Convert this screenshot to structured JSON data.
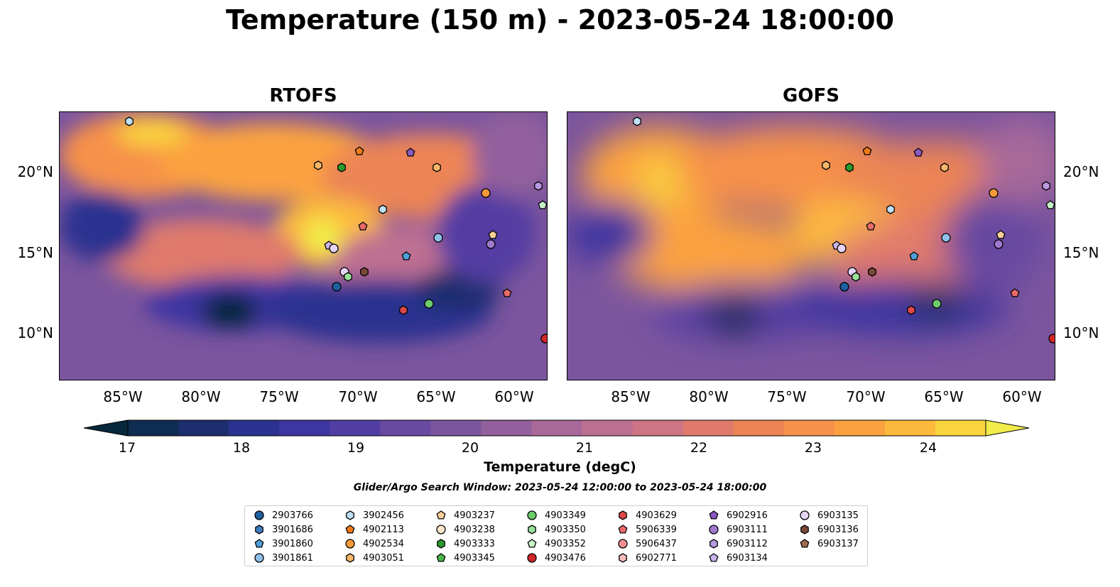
{
  "title": "Temperature (150 m) - 2023-05-24 18:00:00",
  "panels": [
    {
      "title": "RTOFS",
      "variant": "rtofs"
    },
    {
      "title": "GOFS",
      "variant": "gofs"
    }
  ],
  "axes": {
    "lat_ticks": [
      "20°N",
      "15°N",
      "10°N"
    ],
    "lon_ticks": [
      "85°W",
      "80°W",
      "75°W",
      "70°W",
      "65°W",
      "60°W"
    ]
  },
  "colorbar": {
    "label": "Temperature (degC)",
    "ticks": [
      "17",
      "18",
      "19",
      "20",
      "21",
      "22",
      "23",
      "24"
    ],
    "colors": [
      "#06283a",
      "#0f2d52",
      "#1c2e6e",
      "#2a3190",
      "#3d36a0",
      "#523ea3",
      "#684aa0",
      "#7c559e",
      "#92609c",
      "#a8699a",
      "#bd6f91",
      "#cf7484",
      "#df7a6c",
      "#ec8455",
      "#f7914a",
      "#fba240",
      "#fdb93c",
      "#f9d43e",
      "#f1ec4a"
    ]
  },
  "search_window": "Glider/Argo Search Window: 2023-05-24 12:00:00 to 2023-05-24 18:00:00",
  "legend": [
    {
      "id": "2903766",
      "shape": "circle",
      "color": "#1f5fa0"
    },
    {
      "id": "3901686",
      "shape": "hexagon",
      "color": "#3f7fc0"
    },
    {
      "id": "3901860",
      "shape": "pentagon",
      "color": "#4f9fd8"
    },
    {
      "id": "3901861",
      "shape": "circle",
      "color": "#8fc0ea"
    },
    {
      "id": "3902456",
      "shape": "hexagon",
      "color": "#bfe0f8"
    },
    {
      "id": "4902113",
      "shape": "pentagon",
      "color": "#f07a18"
    },
    {
      "id": "4902534",
      "shape": "circle",
      "color": "#f59a3a"
    },
    {
      "id": "4903051",
      "shape": "hexagon",
      "color": "#f8b86a"
    },
    {
      "id": "4903237",
      "shape": "pentagon",
      "color": "#fbd09a"
    },
    {
      "id": "4903238",
      "shape": "circle",
      "color": "#fde6c8"
    },
    {
      "id": "4903333",
      "shape": "hexagon",
      "color": "#2a9a2a"
    },
    {
      "id": "4903345",
      "shape": "pentagon",
      "color": "#48b848"
    },
    {
      "id": "4903349",
      "shape": "circle",
      "color": "#6ccc6c"
    },
    {
      "id": "4903350",
      "shape": "hexagon",
      "color": "#9ae09a"
    },
    {
      "id": "4903352",
      "shape": "pentagon",
      "color": "#c8f2c8"
    },
    {
      "id": "4903476",
      "shape": "circle",
      "color": "#d62728"
    },
    {
      "id": "4903629",
      "shape": "hexagon",
      "color": "#e04848"
    },
    {
      "id": "5906339",
      "shape": "pentagon",
      "color": "#ea6a6a"
    },
    {
      "id": "5906437",
      "shape": "circle",
      "color": "#f29090"
    },
    {
      "id": "6902771",
      "shape": "hexagon",
      "color": "#f8bcbc"
    },
    {
      "id": "6902916",
      "shape": "pentagon",
      "color": "#8a5ac0"
    },
    {
      "id": "6903111",
      "shape": "circle",
      "color": "#a07ad0"
    },
    {
      "id": "6903112",
      "shape": "hexagon",
      "color": "#b898e0"
    },
    {
      "id": "6903134",
      "shape": "pentagon",
      "color": "#ccb4ec"
    },
    {
      "id": "6903135",
      "shape": "circle",
      "color": "#e6d4f8"
    },
    {
      "id": "6903136",
      "shape": "hexagon",
      "color": "#7a4a3a"
    },
    {
      "id": "6903137",
      "shape": "pentagon",
      "color": "#a06a52"
    }
  ],
  "map_colors": {
    "land": "#d2b48c",
    "shelf": "#95b7e3",
    "deep": "#06283a",
    "river": "#9fc4e6"
  }
}
